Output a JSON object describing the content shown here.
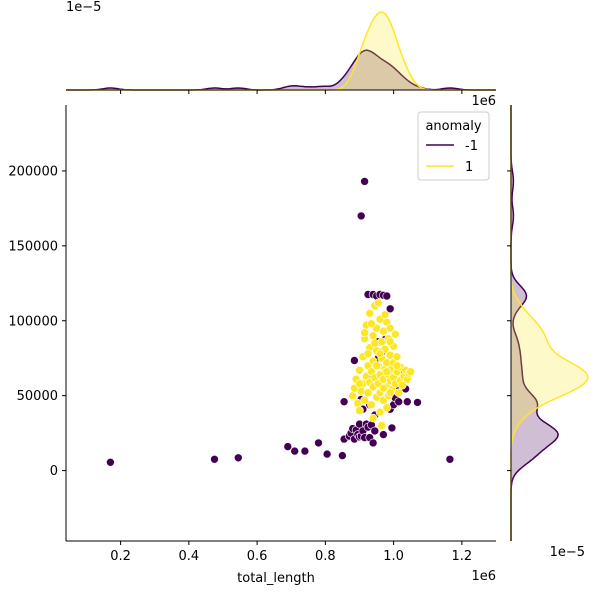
{
  "chart_data": {
    "type": "scatter",
    "title": "",
    "xlabel": "total_length",
    "ylabel": "",
    "x_offset_label": "1e6",
    "y_offset_label": "",
    "xlim": [
      0.04,
      1.3
    ],
    "ylim": [
      -47000,
      244000
    ],
    "x_ticks": [
      0.2,
      0.4,
      0.6,
      0.8,
      1.0,
      1.2
    ],
    "x_tick_labels": [
      "0.2",
      "0.4",
      "0.6",
      "0.8",
      "1.0",
      "1.2"
    ],
    "y_ticks": [
      0,
      50000,
      100000,
      150000,
      200000
    ],
    "y_tick_labels": [
      "0",
      "50000",
      "100000",
      "150000",
      "200000"
    ],
    "grid": false,
    "legend": {
      "title": "anomaly",
      "placement": "top-right",
      "entries": [
        {
          "label": "-1",
          "color": "#440154"
        },
        {
          "label": "1",
          "color": "#fde725"
        }
      ]
    },
    "marginal_x": {
      "offset_label": "1e−5",
      "top_offset_label": "1e6"
    },
    "marginal_y": {
      "offset_label": "1e−5"
    },
    "series": [
      {
        "name": "-1",
        "color": "#440154",
        "points": [
          [
            0.17,
            5500
          ],
          [
            0.475,
            7500
          ],
          [
            0.545,
            8500
          ],
          [
            0.69,
            16000
          ],
          [
            0.71,
            13000
          ],
          [
            0.74,
            13000
          ],
          [
            0.78,
            18500
          ],
          [
            0.805,
            11000
          ],
          [
            0.85,
            10000
          ],
          [
            0.855,
            21000
          ],
          [
            0.855,
            46000
          ],
          [
            0.87,
            23000
          ],
          [
            0.875,
            25000
          ],
          [
            0.88,
            28000
          ],
          [
            0.885,
            73500
          ],
          [
            0.885,
            21000
          ],
          [
            0.89,
            27000
          ],
          [
            0.895,
            24000
          ],
          [
            0.9,
            22500
          ],
          [
            0.9,
            31000
          ],
          [
            0.905,
            170000
          ],
          [
            0.905,
            23000
          ],
          [
            0.91,
            26500
          ],
          [
            0.91,
            41000
          ],
          [
            0.915,
            193000
          ],
          [
            0.915,
            22000
          ],
          [
            0.92,
            31000
          ],
          [
            0.925,
            29000
          ],
          [
            0.925,
            117500
          ],
          [
            0.93,
            22000
          ],
          [
            0.93,
            44000
          ],
          [
            0.935,
            30500
          ],
          [
            0.94,
            18500
          ],
          [
            0.94,
            117500
          ],
          [
            0.945,
            26500
          ],
          [
            0.945,
            37000
          ],
          [
            0.95,
            116500
          ],
          [
            0.955,
            75000
          ],
          [
            0.96,
            117500
          ],
          [
            0.965,
            79000
          ],
          [
            0.97,
            117000
          ],
          [
            0.97,
            24000
          ],
          [
            0.975,
            87500
          ],
          [
            0.98,
            116500
          ],
          [
            0.985,
            64000
          ],
          [
            0.99,
            108000
          ],
          [
            0.99,
            41000
          ],
          [
            0.995,
            28500
          ],
          [
            1.0,
            44000
          ],
          [
            1.005,
            48500
          ],
          [
            1.01,
            57000
          ],
          [
            1.015,
            46000
          ],
          [
            1.025,
            66000
          ],
          [
            1.035,
            54500
          ],
          [
            1.04,
            46000
          ],
          [
            1.07,
            45500
          ],
          [
            1.165,
            7500
          ],
          [
            0.905,
            47500
          ],
          [
            0.925,
            63500
          ],
          [
            0.955,
            86000
          ]
        ]
      },
      {
        "name": "1",
        "color": "#fde725",
        "points": [
          [
            0.88,
            50000
          ],
          [
            0.885,
            55000
          ],
          [
            0.89,
            61000
          ],
          [
            0.895,
            45000
          ],
          [
            0.9,
            67000
          ],
          [
            0.9,
            40000
          ],
          [
            0.905,
            53000
          ],
          [
            0.91,
            76000
          ],
          [
            0.91,
            58000
          ],
          [
            0.915,
            88000
          ],
          [
            0.915,
            47000
          ],
          [
            0.92,
            63000
          ],
          [
            0.92,
            97000
          ],
          [
            0.925,
            70000
          ],
          [
            0.925,
            52000
          ],
          [
            0.93,
            82000
          ],
          [
            0.93,
            59000
          ],
          [
            0.93,
            105000
          ],
          [
            0.935,
            66000
          ],
          [
            0.935,
            44000
          ],
          [
            0.94,
            90000
          ],
          [
            0.94,
            56000
          ],
          [
            0.94,
            73000
          ],
          [
            0.945,
            110000
          ],
          [
            0.945,
            62000
          ],
          [
            0.95,
            80000
          ],
          [
            0.95,
            49000
          ],
          [
            0.95,
            95000
          ],
          [
            0.955,
            58000
          ],
          [
            0.955,
            70000
          ],
          [
            0.96,
            101000
          ],
          [
            0.96,
            64000
          ],
          [
            0.96,
            52000
          ],
          [
            0.965,
            86000
          ],
          [
            0.965,
            75000
          ],
          [
            0.97,
            61000
          ],
          [
            0.97,
            93000
          ],
          [
            0.97,
            47000
          ],
          [
            0.975,
            68000
          ],
          [
            0.975,
            81000
          ],
          [
            0.98,
            56000
          ],
          [
            0.98,
            99000
          ],
          [
            0.98,
            72000
          ],
          [
            0.985,
            64000
          ],
          [
            0.985,
            88000
          ],
          [
            0.985,
            50000
          ],
          [
            0.99,
            77000
          ],
          [
            0.99,
            60000
          ],
          [
            0.99,
            95000
          ],
          [
            0.995,
            68000
          ],
          [
            0.995,
            54000
          ],
          [
            1.0,
            83000
          ],
          [
            1.0,
            62000
          ],
          [
            1.0,
            72000
          ],
          [
            1.005,
            58000
          ],
          [
            1.005,
            91000
          ],
          [
            1.01,
            66000
          ],
          [
            1.01,
            76000
          ],
          [
            1.015,
            52000
          ],
          [
            1.02,
            69000
          ],
          [
            1.02,
            60000
          ],
          [
            1.025,
            57000
          ],
          [
            1.03,
            63000
          ],
          [
            1.035,
            67000
          ],
          [
            1.04,
            61000
          ],
          [
            1.045,
            65000
          ],
          [
            1.05,
            66000
          ],
          [
            0.94,
            35000
          ],
          [
            0.96,
            39000
          ],
          [
            0.98,
            42000
          ],
          [
            0.965,
            30000
          ],
          [
            0.945,
            85000
          ],
          [
            0.925,
            78000
          ],
          [
            0.915,
            92000
          ],
          [
            0.935,
            98000
          ],
          [
            0.955,
            112000
          ],
          [
            0.975,
            104000
          ],
          [
            0.99,
            86000
          ],
          [
            1.01,
            70000
          ],
          [
            0.9,
            58000
          ],
          [
            0.95,
            70000
          ],
          [
            0.96,
            78000
          ],
          [
            0.97,
            55000
          ],
          [
            0.98,
            66000
          ],
          [
            0.99,
            52000
          ]
        ]
      }
    ]
  }
}
